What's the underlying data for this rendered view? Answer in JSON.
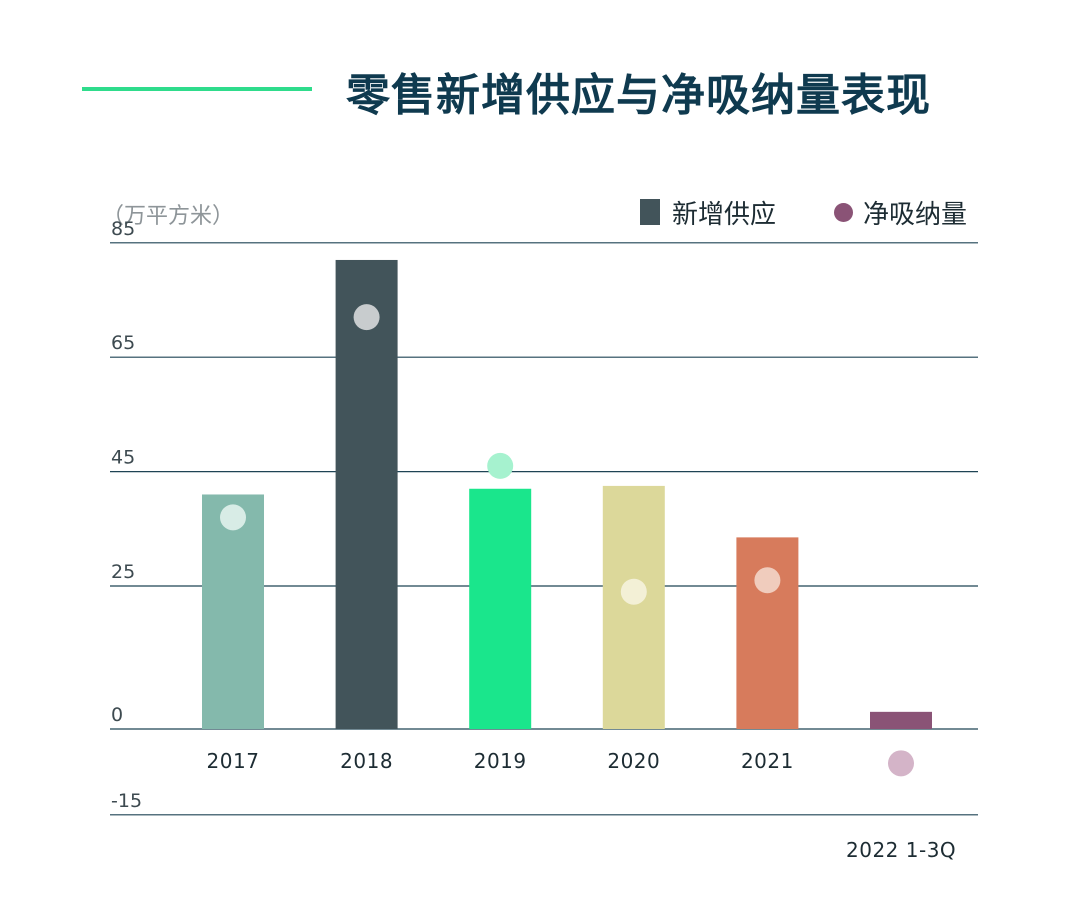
{
  "header": {
    "title": "零售新增供应与净吸纳量表现",
    "accent_color": "#2fdc8c"
  },
  "chart_data": {
    "type": "bar",
    "title": "零售新增供应与净吸纳量表现",
    "unit_label": "（万平方米）",
    "categories": [
      "2017",
      "2018",
      "2019",
      "2020",
      "2021",
      ""
    ],
    "footnote": "2022 1-3Q",
    "ylim": [
      -15,
      85
    ],
    "yticks": [
      85,
      65,
      45,
      25,
      0,
      -15
    ],
    "grid": true,
    "legend_position": "top-right",
    "series": [
      {
        "name": "新增供应",
        "kind": "bar",
        "legend_color": "#42545a",
        "values": [
          41,
          82,
          42,
          42.5,
          33.5,
          3
        ],
        "colors": [
          "#84b9ac",
          "#42545a",
          "#1ae68c",
          "#dcd89a",
          "#d77b5c",
          "#8a5376"
        ]
      },
      {
        "name": "净吸纳量",
        "kind": "dot",
        "legend_color": "#8a5376",
        "values": [
          37,
          72,
          46,
          24,
          26,
          -6
        ],
        "colors": [
          "#d8ece6",
          "#c8ccce",
          "#a6f2cf",
          "#f3f0d6",
          "#f0ccbd",
          "#d4b4c8"
        ]
      }
    ]
  }
}
